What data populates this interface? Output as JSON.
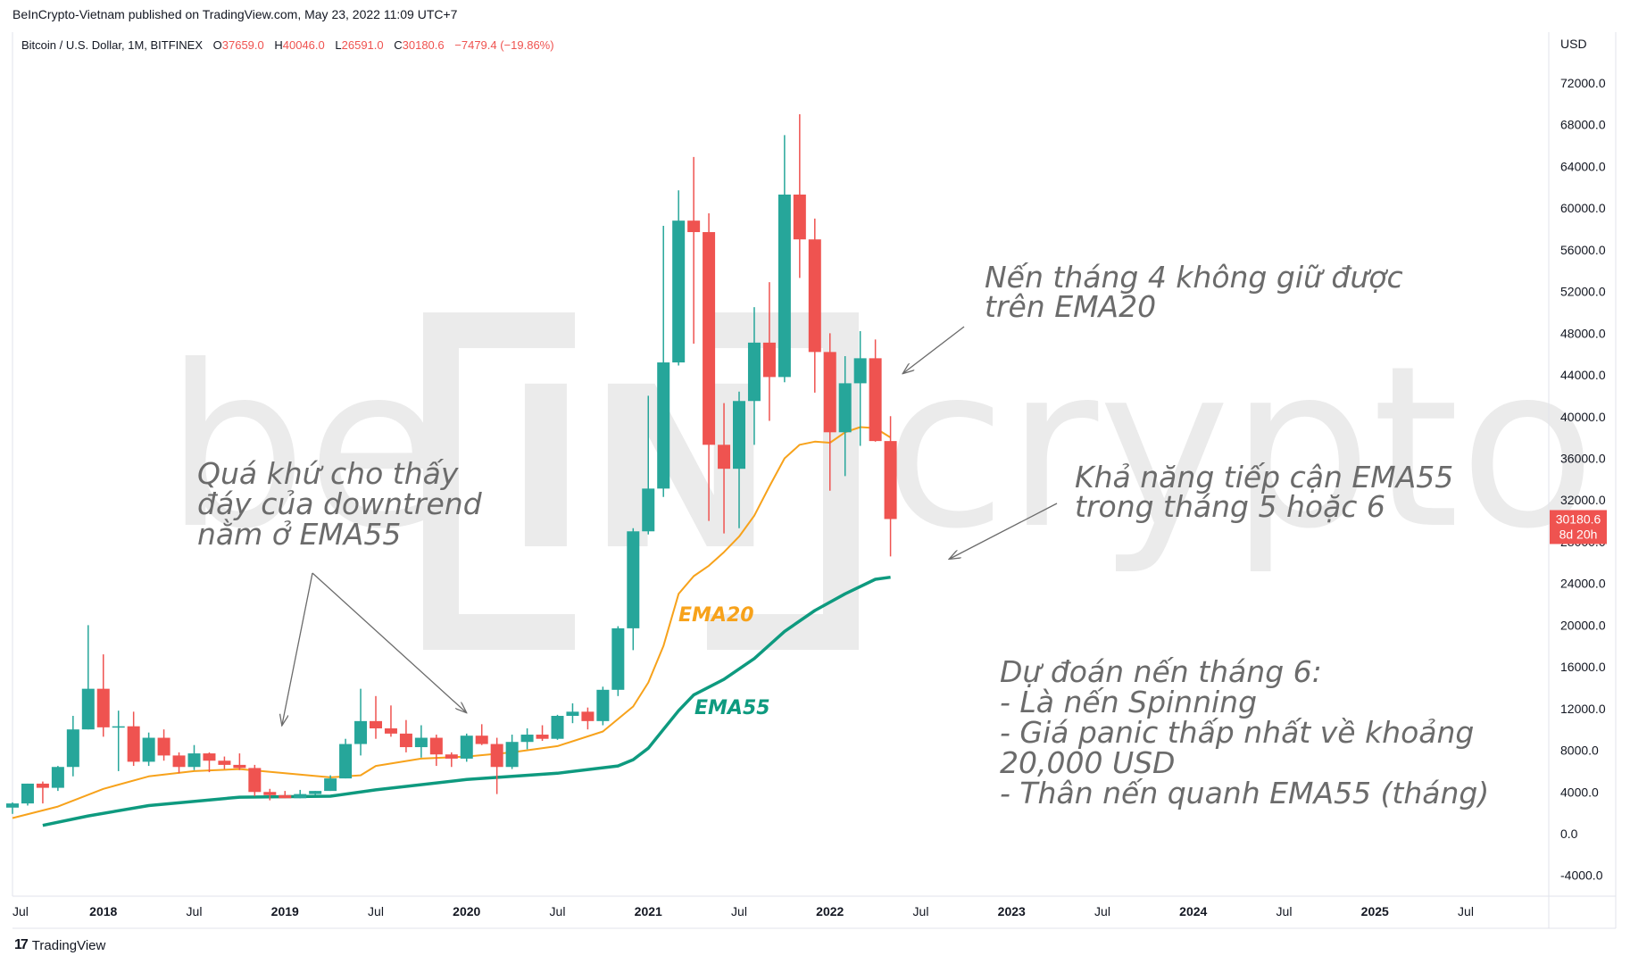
{
  "header": {
    "publisher": "BeInCrypto-Vietnam published on TradingView.com, May 23, 2022 11:09 UTC+7"
  },
  "legend": {
    "symbol": "Bitcoin / U.S. Dollar, 1M, BITFINEX",
    "open_label": "O",
    "open": "37659.0",
    "high_label": "H",
    "high": "40046.0",
    "low_label": "L",
    "low": "26591.0",
    "close_label": "C",
    "close": "30180.6",
    "change": "−7479.4 (−19.86%)"
  },
  "price_axis": {
    "currency": "USD",
    "last_price": "30180.6",
    "countdown": "8d 20h"
  },
  "footer": {
    "brand": "TradingView",
    "logo_glyph": "17"
  },
  "watermark": {
    "text_left": "be",
    "text_mid": "IN",
    "text_right": "crypto"
  },
  "colors": {
    "up": "#26a69a",
    "down": "#ef5350",
    "ema20": "#f7a21b",
    "ema55": "#0e9a7f",
    "annotation": "#6b6b6b",
    "price_label_bg": "#ef5350"
  },
  "annotations": {
    "top_right": [
      "Nến tháng 4 không giữ được",
      "trên EMA20"
    ],
    "left": [
      "Quá khứ cho thấy",
      "đáy của downtrend",
      "nằm ở EMA55"
    ],
    "mid_right": [
      "Khả năng tiếp cận EMA55",
      "trong tháng 5 hoặc 6"
    ],
    "bottom_right": [
      "Dự đoán nến tháng 6:",
      "- Là nến Spinning",
      "- Giá panic thấp nhất về khoảng",
      "20,000 USD",
      "- Thân nến quanh EMA55 (tháng)"
    ],
    "ema20_tag": "EMA20",
    "ema55_tag": "EMA55"
  },
  "chart_data": {
    "type": "candlestick",
    "symbol": "Bitcoin / U.S. Dollar",
    "interval": "1M",
    "exchange": "BITFINEX",
    "y_unit": "USD",
    "ylim": [
      -5000,
      76000
    ],
    "y_ticks": [
      -4000,
      0,
      4000,
      8000,
      12000,
      16000,
      20000,
      24000,
      28000,
      32000,
      36000,
      40000,
      44000,
      48000,
      52000,
      56000,
      60000,
      64000,
      68000,
      72000
    ],
    "y_tick_labels": [
      "-4000.0",
      "0.0",
      "4000.0",
      "8000.0",
      "12000.0",
      "16000.0",
      "20000.0",
      "24000.0",
      "28000.0",
      "32000.0",
      "36000.0",
      "40000.0",
      "44000.0",
      "48000.0",
      "52000.0",
      "56000.0",
      "60000.0",
      "64000.0",
      "68000.0",
      "72000.0"
    ],
    "x_ticks": [
      {
        "date": "2017-07",
        "label": "Jul",
        "year": false
      },
      {
        "date": "2018-01",
        "label": "2018",
        "year": true
      },
      {
        "date": "2018-07",
        "label": "Jul",
        "year": false
      },
      {
        "date": "2019-01",
        "label": "2019",
        "year": true
      },
      {
        "date": "2019-07",
        "label": "Jul",
        "year": false
      },
      {
        "date": "2020-01",
        "label": "2020",
        "year": true
      },
      {
        "date": "2020-07",
        "label": "Jul",
        "year": false
      },
      {
        "date": "2021-01",
        "label": "2021",
        "year": true
      },
      {
        "date": "2021-07",
        "label": "Jul",
        "year": false
      },
      {
        "date": "2022-01",
        "label": "2022",
        "year": true
      },
      {
        "date": "2022-07",
        "label": "Jul",
        "year": false
      },
      {
        "date": "2023-01",
        "label": "2023",
        "year": true
      },
      {
        "date": "2023-07",
        "label": "Jul",
        "year": false
      },
      {
        "date": "2024-01",
        "label": "2024",
        "year": true
      },
      {
        "date": "2024-07",
        "label": "Jul",
        "year": false
      },
      {
        "date": "2025-01",
        "label": "2025",
        "year": true
      },
      {
        "date": "2025-07",
        "label": "Jul",
        "year": false
      }
    ],
    "candles": [
      {
        "date": "2017-07",
        "o": 2500,
        "h": 3000,
        "l": 1900,
        "c": 2900
      },
      {
        "date": "2017-08",
        "o": 2900,
        "h": 4800,
        "l": 2700,
        "c": 4800
      },
      {
        "date": "2017-09",
        "o": 4800,
        "h": 5000,
        "l": 2900,
        "c": 4400
      },
      {
        "date": "2017-10",
        "o": 4400,
        "h": 6500,
        "l": 4100,
        "c": 6400
      },
      {
        "date": "2017-11",
        "o": 6400,
        "h": 11300,
        "l": 5500,
        "c": 10000
      },
      {
        "date": "2017-12",
        "o": 10000,
        "h": 20000,
        "l": 10000,
        "c": 13900
      },
      {
        "date": "2018-01",
        "o": 13900,
        "h": 17200,
        "l": 9300,
        "c": 10200
      },
      {
        "date": "2018-02",
        "o": 10200,
        "h": 11800,
        "l": 6000,
        "c": 10300
      },
      {
        "date": "2018-03",
        "o": 10300,
        "h": 11700,
        "l": 6500,
        "c": 6900
      },
      {
        "date": "2018-04",
        "o": 6900,
        "h": 9700,
        "l": 6500,
        "c": 9200
      },
      {
        "date": "2018-05",
        "o": 9200,
        "h": 10000,
        "l": 7000,
        "c": 7500
      },
      {
        "date": "2018-06",
        "o": 7500,
        "h": 7800,
        "l": 5800,
        "c": 6400
      },
      {
        "date": "2018-07",
        "o": 6400,
        "h": 8500,
        "l": 6100,
        "c": 7700
      },
      {
        "date": "2018-08",
        "o": 7700,
        "h": 7800,
        "l": 5900,
        "c": 7000
      },
      {
        "date": "2018-09",
        "o": 7000,
        "h": 7400,
        "l": 6200,
        "c": 6600
      },
      {
        "date": "2018-10",
        "o": 6600,
        "h": 7700,
        "l": 6100,
        "c": 6300
      },
      {
        "date": "2018-11",
        "o": 6300,
        "h": 6600,
        "l": 3600,
        "c": 4000
      },
      {
        "date": "2018-12",
        "o": 4000,
        "h": 4300,
        "l": 3200,
        "c": 3700
      },
      {
        "date": "2019-01",
        "o": 3700,
        "h": 4100,
        "l": 3400,
        "c": 3400
      },
      {
        "date": "2019-02",
        "o": 3400,
        "h": 4200,
        "l": 3400,
        "c": 3800
      },
      {
        "date": "2019-03",
        "o": 3800,
        "h": 4100,
        "l": 3700,
        "c": 4100
      },
      {
        "date": "2019-04",
        "o": 4100,
        "h": 5600,
        "l": 4100,
        "c": 5300
      },
      {
        "date": "2019-05",
        "o": 5300,
        "h": 9100,
        "l": 5300,
        "c": 8600
      },
      {
        "date": "2019-06",
        "o": 8600,
        "h": 13900,
        "l": 7500,
        "c": 10800
      },
      {
        "date": "2019-07",
        "o": 10800,
        "h": 13200,
        "l": 9100,
        "c": 10100
      },
      {
        "date": "2019-08",
        "o": 10100,
        "h": 12300,
        "l": 9300,
        "c": 9600
      },
      {
        "date": "2019-09",
        "o": 9600,
        "h": 10900,
        "l": 7800,
        "c": 8300
      },
      {
        "date": "2019-10",
        "o": 8300,
        "h": 10400,
        "l": 7300,
        "c": 9200
      },
      {
        "date": "2019-11",
        "o": 9200,
        "h": 9500,
        "l": 6500,
        "c": 7600
      },
      {
        "date": "2019-12",
        "o": 7600,
        "h": 7800,
        "l": 6400,
        "c": 7200
      },
      {
        "date": "2020-01",
        "o": 7200,
        "h": 9600,
        "l": 6900,
        "c": 9400
      },
      {
        "date": "2020-02",
        "o": 9400,
        "h": 10500,
        "l": 8500,
        "c": 8600
      },
      {
        "date": "2020-03",
        "o": 8600,
        "h": 9200,
        "l": 3800,
        "c": 6400
      },
      {
        "date": "2020-04",
        "o": 6400,
        "h": 9500,
        "l": 6200,
        "c": 8800
      },
      {
        "date": "2020-05",
        "o": 8800,
        "h": 10100,
        "l": 8100,
        "c": 9500
      },
      {
        "date": "2020-06",
        "o": 9500,
        "h": 10400,
        "l": 8900,
        "c": 9100
      },
      {
        "date": "2020-07",
        "o": 9100,
        "h": 11400,
        "l": 9000,
        "c": 11300
      },
      {
        "date": "2020-08",
        "o": 11300,
        "h": 12500,
        "l": 10600,
        "c": 11700
      },
      {
        "date": "2020-09",
        "o": 11700,
        "h": 12100,
        "l": 10000,
        "c": 10800
      },
      {
        "date": "2020-10",
        "o": 10800,
        "h": 14100,
        "l": 10400,
        "c": 13800
      },
      {
        "date": "2020-11",
        "o": 13800,
        "h": 19900,
        "l": 13200,
        "c": 19700
      },
      {
        "date": "2020-12",
        "o": 19700,
        "h": 29300,
        "l": 17600,
        "c": 29000
      },
      {
        "date": "2021-01",
        "o": 29000,
        "h": 42000,
        "l": 28700,
        "c": 33100
      },
      {
        "date": "2021-02",
        "o": 33100,
        "h": 58300,
        "l": 32300,
        "c": 45200
      },
      {
        "date": "2021-03",
        "o": 45200,
        "h": 61700,
        "l": 44900,
        "c": 58800
      },
      {
        "date": "2021-04",
        "o": 58800,
        "h": 64900,
        "l": 47000,
        "c": 57700
      },
      {
        "date": "2021-05",
        "o": 57700,
        "h": 59500,
        "l": 30000,
        "c": 37300
      },
      {
        "date": "2021-06",
        "o": 37300,
        "h": 41300,
        "l": 28800,
        "c": 35000
      },
      {
        "date": "2021-07",
        "o": 35000,
        "h": 42400,
        "l": 29300,
        "c": 41500
      },
      {
        "date": "2021-08",
        "o": 41500,
        "h": 50500,
        "l": 37300,
        "c": 47100
      },
      {
        "date": "2021-09",
        "o": 47100,
        "h": 52900,
        "l": 39600,
        "c": 43800
      },
      {
        "date": "2021-10",
        "o": 43800,
        "h": 67000,
        "l": 43300,
        "c": 61300
      },
      {
        "date": "2021-11",
        "o": 61300,
        "h": 69000,
        "l": 53300,
        "c": 57000
      },
      {
        "date": "2021-12",
        "o": 57000,
        "h": 59000,
        "l": 42300,
        "c": 46200
      },
      {
        "date": "2022-01",
        "o": 46200,
        "h": 48000,
        "l": 32900,
        "c": 38500
      },
      {
        "date": "2022-02",
        "o": 38500,
        "h": 45800,
        "l": 34300,
        "c": 43200
      },
      {
        "date": "2022-03",
        "o": 43200,
        "h": 48200,
        "l": 37200,
        "c": 45600
      },
      {
        "date": "2022-04",
        "o": 45600,
        "h": 47400,
        "l": 37600,
        "c": 37659
      },
      {
        "date": "2022-05",
        "o": 37659,
        "h": 40046,
        "l": 26591,
        "c": 30180.6
      }
    ],
    "series": [
      {
        "name": "EMA20",
        "color": "#f7a21b",
        "points": [
          [
            "2017-07",
            1500
          ],
          [
            "2017-10",
            2600
          ],
          [
            "2018-01",
            4300
          ],
          [
            "2018-04",
            5500
          ],
          [
            "2018-07",
            6000
          ],
          [
            "2018-10",
            6200
          ],
          [
            "2019-01",
            5800
          ],
          [
            "2019-04",
            5400
          ],
          [
            "2019-06",
            5600
          ],
          [
            "2019-07",
            6500
          ],
          [
            "2019-10",
            7200
          ],
          [
            "2020-01",
            7400
          ],
          [
            "2020-04",
            7800
          ],
          [
            "2020-07",
            8400
          ],
          [
            "2020-10",
            9800
          ],
          [
            "2020-12",
            12200
          ],
          [
            "2021-01",
            14500
          ],
          [
            "2021-02",
            18000
          ],
          [
            "2021-03",
            23000
          ],
          [
            "2021-04",
            24700
          ],
          [
            "2021-05",
            25700
          ],
          [
            "2021-06",
            27000
          ],
          [
            "2021-07",
            28500
          ],
          [
            "2021-08",
            30500
          ],
          [
            "2021-09",
            33300
          ],
          [
            "2021-10",
            36000
          ],
          [
            "2021-11",
            37300
          ],
          [
            "2021-12",
            37600
          ],
          [
            "2022-01",
            37500
          ],
          [
            "2022-02",
            38500
          ],
          [
            "2022-03",
            39000
          ],
          [
            "2022-04",
            38900
          ],
          [
            "2022-05",
            38000
          ]
        ]
      },
      {
        "name": "EMA55",
        "color": "#0e9a7f",
        "points": [
          [
            "2017-09",
            800
          ],
          [
            "2017-12",
            1700
          ],
          [
            "2018-04",
            2700
          ],
          [
            "2018-10",
            3500
          ],
          [
            "2019-04",
            3600
          ],
          [
            "2019-07",
            4200
          ],
          [
            "2020-01",
            5200
          ],
          [
            "2020-07",
            5800
          ],
          [
            "2020-11",
            6500
          ],
          [
            "2020-12",
            7100
          ],
          [
            "2021-01",
            8200
          ],
          [
            "2021-02",
            10000
          ],
          [
            "2021-03",
            11800
          ],
          [
            "2021-04",
            13300
          ],
          [
            "2021-06",
            14800
          ],
          [
            "2021-08",
            16800
          ],
          [
            "2021-10",
            19400
          ],
          [
            "2021-12",
            21400
          ],
          [
            "2022-02",
            23000
          ],
          [
            "2022-04",
            24400
          ],
          [
            "2022-05",
            24600
          ]
        ]
      }
    ]
  }
}
